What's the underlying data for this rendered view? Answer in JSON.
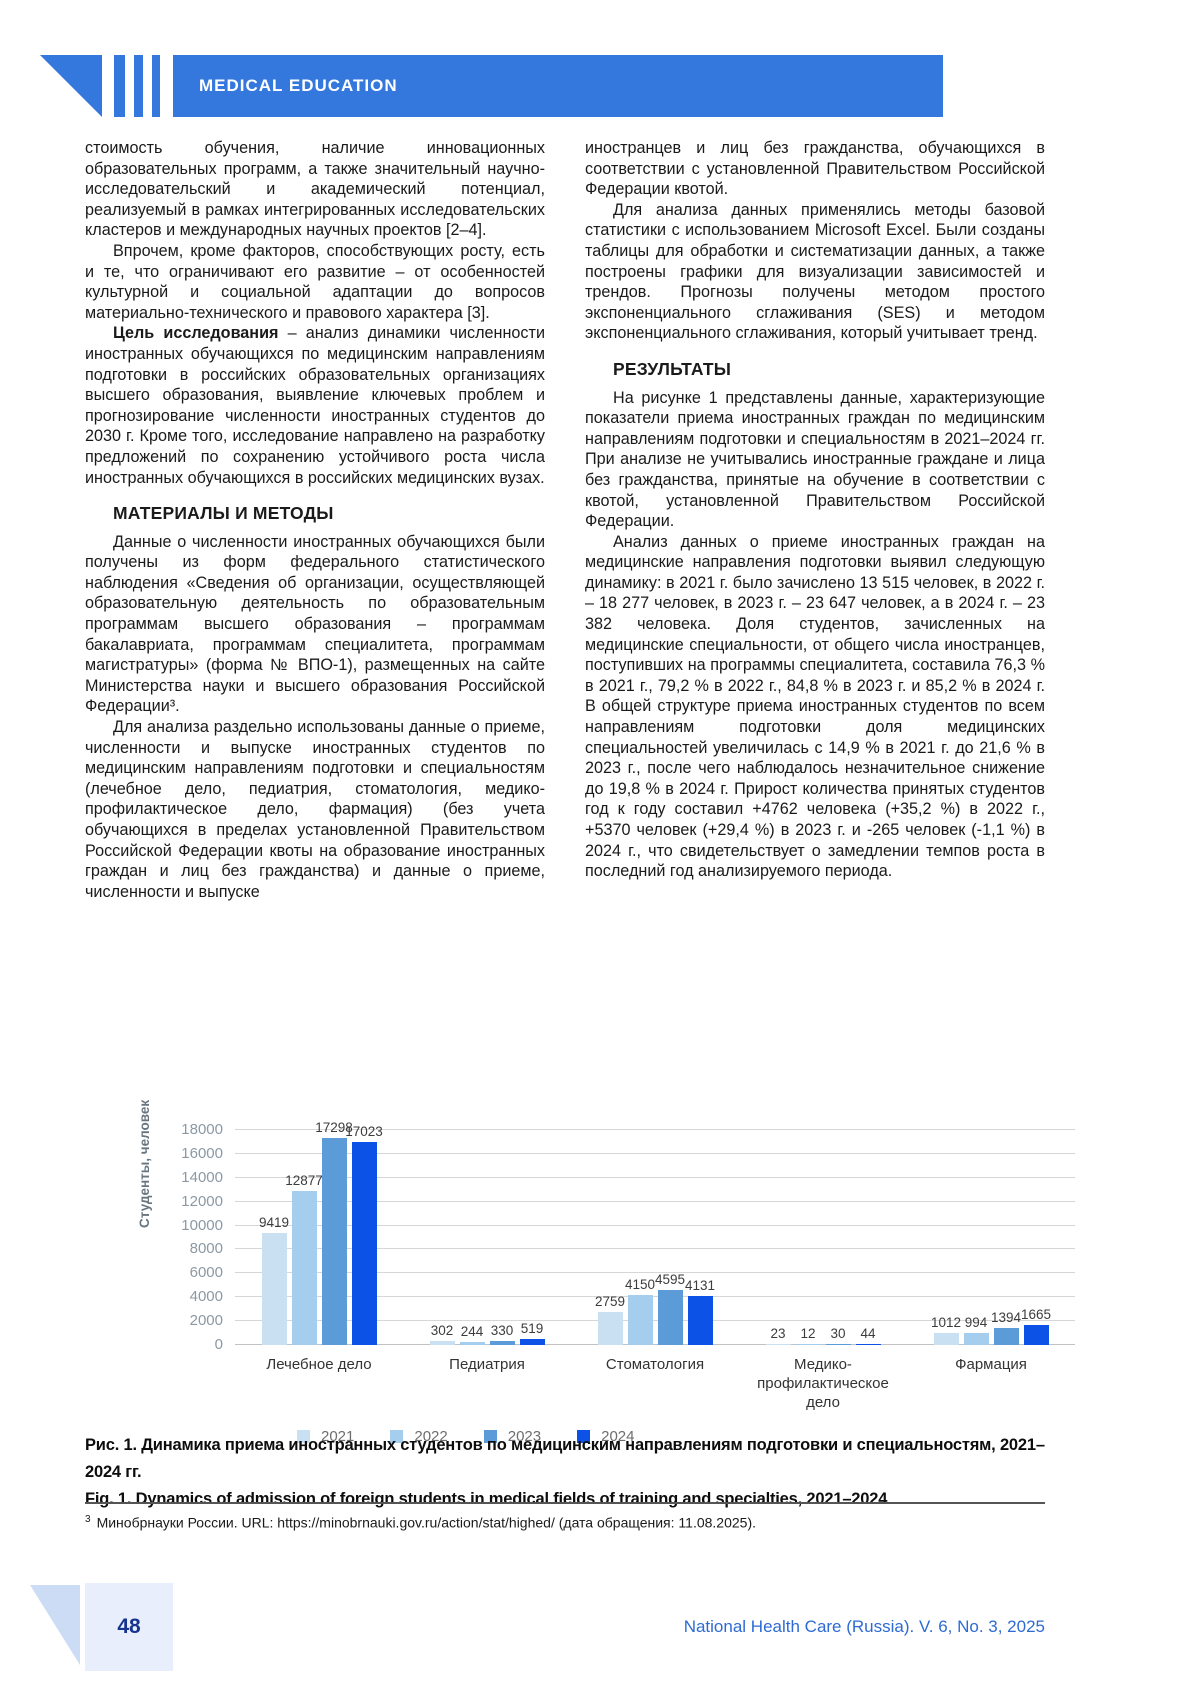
{
  "header": {
    "category_label": "MEDICAL EDUCATION",
    "accent_color": "#3478dd"
  },
  "article": {
    "left": {
      "p1": "стоимость обучения, наличие инновационных образовательных программ, а также значительный научно-исследовательский и академический потенциал, реализуемый в рамках интегрированных исследовательских кластеров и международных научных проектов [2–4].",
      "p2": "Впрочем, кроме факторов, способствующих росту, есть и те, что ограничивают его развитие – от особенностей культурной и социальной адаптации до вопросов материально-технического и правового характера [3].",
      "p3_bold": "Цель исследования",
      "p3_rest": " – анализ динамики численности иностранных обучающихся по медицинским направлениям подготовки в российских образовательных организациях высшего образования, выявление ключевых проблем и прогнозирование численности иностранных студентов до 2030 г. Кроме того, исследование направлено на разработку предложений по сохранению устойчивого роста числа иностранных обучающихся в российских медицинских вузах.",
      "heading": "МАТЕРИАЛЫ И МЕТОДЫ",
      "p4": "Данные о численности иностранных обучающихся были получены из форм федерального статистического наблюдения «Сведения об организации, осуществляющей образовательную деятельность по образовательным программам высшего образования – программам бакалавриата, программам специалитета, программам магистратуры» (форма № ВПО-1), размещенных на сайте Министерства науки и высшего образования Российской Федерации³.",
      "p5": "Для анализа раздельно использованы данные о приеме, численности и выпуске иностранных студентов по медицинским направлениям подготовки и специальностям (лечебное дело, педиатрия, стоматология, медико-профилактическое дело, фармация) (без учета обучающихся в пределах установленной Правительством Российской Федерации квоты на образование иностранных граждан и лиц без гражданства) и данные о приеме, численности и выпуске"
    },
    "right": {
      "p1": "иностранцев и лиц без гражданства, обучающихся в соответствии с установленной Правительством Российской Федерации квотой.",
      "p2": "Для анализа данных применялись методы базовой статистики с использованием Microsoft Excel. Были созданы таблицы для обработки и систематизации данных, а также построены графики для визуализации зависимостей и трендов. Прогнозы получены методом простого экспоненциального сглаживания (SES) и методом экспоненциального сглаживания, который учитывает тренд.",
      "heading": "РЕЗУЛЬТАТЫ",
      "p3": "На рисунке 1 представлены данные, характеризующие показатели приема иностранных граждан по медицинским направлениям подготовки и специальностям в 2021–2024 гг. При анализе не учитывались иностранные граждане и лица без гражданства, принятые на обучение в соответствии с квотой, установленной Правительством Российской Федерации.",
      "p4": "Анализ данных о приеме иностранных граждан на медицинские направления подготовки выявил следующую динамику: в 2021 г. было зачислено 13 515 человек, в 2022 г. – 18 277 человек, в 2023 г. – 23 647 человек, а в 2024 г. – 23 382 человека. Доля студентов, зачисленных на медицинские специальности, от общего числа иностранцев, поступивших на программы специалитета, составила 76,3 % в 2021 г., 79,2 % в 2022 г., 84,8 % в 2023 г. и 85,2 % в 2024 г. В общей структуре приема иностранных студентов по всем направлениям подготовки доля медицинских специальностей увеличилась с 14,9 % в 2021 г. до 21,6 % в 2023 г., после чего наблюдалось незначительное снижение до 19,8 % в 2024 г. Прирост количества принятых студентов год к году составил +4762 человека (+35,2 %) в 2022 г., +5370 человек (+29,4 %) в 2023 г. и -265 человек (-1,1 %) в 2024 г., что свидетельствует о замедлении темпов роста в последний год анализируемого периода."
    }
  },
  "chart_data": {
    "type": "bar",
    "categories": [
      "Лечебное дело",
      "Педиатрия",
      "Стоматология",
      "Медико-профилактическое дело",
      "Фармация"
    ],
    "series": [
      {
        "name": "2021",
        "color": "#c9e0f3",
        "values": [
          9419,
          302,
          2759,
          23,
          1012
        ]
      },
      {
        "name": "2022",
        "color": "#a5cdee",
        "values": [
          12877,
          244,
          4150,
          12,
          994
        ]
      },
      {
        "name": "2023",
        "color": "#5b9bd8",
        "values": [
          17298,
          330,
          4595,
          30,
          1394
        ]
      },
      {
        "name": "2024",
        "color": "#0d52e6",
        "values": [
          17023,
          519,
          4131,
          44,
          1665
        ]
      }
    ],
    "title": "",
    "xlabel": "",
    "ylabel": "Студенты, человек",
    "ylim": [
      0,
      18000
    ],
    "ytick_step": 2000,
    "grid": true,
    "legend_position": "bottom"
  },
  "figure": {
    "caption_ru": "Рис. 1. Динамика приема иностранных студентов по медицинским направлениям подготовки и специальностям, 2021–2024 гг.",
    "caption_en": "Fig. 1. Dynamics of admission of foreign students in medical fields of training and specialties, 2021–2024"
  },
  "footnote": {
    "marker": "3",
    "text": "Минобрнауки России. URL: https://minobrnauki.gov.ru/action/stat/highed/ (дата обращения: 11.08.2025)."
  },
  "footer": {
    "page_number": "48",
    "journal": "National Health Care (Russia). V. 6, No. 3, 2025"
  }
}
